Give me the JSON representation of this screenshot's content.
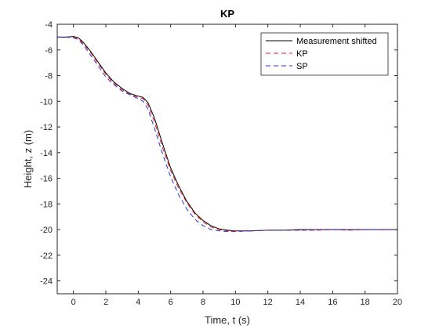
{
  "chart_data": {
    "type": "line",
    "title": "KP",
    "xlabel": "Time, t (s)",
    "ylabel": "Height, z (m)",
    "xlim": [
      -1,
      20
    ],
    "ylim": [
      -25,
      -4
    ],
    "xticks": [
      0,
      2,
      4,
      6,
      8,
      10,
      12,
      14,
      16,
      18,
      20
    ],
    "yticks": [
      -24,
      -22,
      -20,
      -18,
      -16,
      -14,
      -12,
      -10,
      -8,
      -6,
      -4
    ],
    "grid": false,
    "legend_position": "top-right",
    "series": [
      {
        "name": "Measurement shifted",
        "color": "#000000",
        "style": "solid",
        "x": [
          -1,
          -0.5,
          0,
          0.3,
          0.6,
          1,
          1.5,
          2,
          2.5,
          3,
          3.5,
          4,
          4.3,
          4.6,
          5,
          5.5,
          6,
          6.5,
          7,
          7.5,
          8,
          8.5,
          9,
          9.5,
          10,
          11,
          12,
          13,
          14,
          15,
          16,
          17,
          18,
          19,
          20
        ],
        "y": [
          -5.0,
          -5.0,
          -4.95,
          -5.05,
          -5.4,
          -6.0,
          -6.9,
          -7.8,
          -8.5,
          -9.0,
          -9.4,
          -9.6,
          -9.7,
          -10.1,
          -11.3,
          -13.3,
          -15.2,
          -16.6,
          -17.8,
          -18.7,
          -19.3,
          -19.7,
          -19.95,
          -20.05,
          -20.1,
          -20.1,
          -20.05,
          -20.05,
          -20.0,
          -20.0,
          -20.0,
          -20.0,
          -20.0,
          -20.0,
          -20.0
        ]
      },
      {
        "name": "KP",
        "color": "#e8181c",
        "style": "dashed",
        "x": [
          -1,
          -0.5,
          0,
          0.3,
          0.6,
          1,
          1.5,
          2,
          2.5,
          3,
          3.5,
          4,
          4.3,
          4.6,
          5,
          5.5,
          6,
          6.5,
          7,
          7.5,
          8,
          8.5,
          9,
          9.5,
          10,
          11,
          12,
          13,
          14,
          15,
          16,
          17,
          18,
          19,
          20
        ],
        "y": [
          -5.0,
          -5.0,
          -5.0,
          -5.1,
          -5.5,
          -6.1,
          -7.0,
          -7.9,
          -8.6,
          -9.1,
          -9.45,
          -9.7,
          -9.8,
          -10.3,
          -11.6,
          -13.6,
          -15.4,
          -16.8,
          -17.9,
          -18.8,
          -19.4,
          -19.8,
          -20.0,
          -20.1,
          -20.1,
          -20.1,
          -20.05,
          -20.05,
          -20.05,
          -20.0,
          -20.0,
          -20.0,
          -20.0,
          -20.0,
          -20.0
        ]
      },
      {
        "name": "SP",
        "color": "#2233dd",
        "style": "dashed",
        "x": [
          -1,
          -0.5,
          0,
          0.3,
          0.6,
          1,
          1.5,
          2,
          2.5,
          3,
          3.5,
          4,
          4.3,
          4.6,
          5,
          5.5,
          6,
          6.5,
          7,
          7.5,
          8,
          8.5,
          9,
          9.5,
          10,
          11,
          12,
          13,
          14,
          15,
          16,
          17,
          18,
          19,
          20
        ],
        "y": [
          -5.0,
          -5.0,
          -5.05,
          -5.2,
          -5.6,
          -6.3,
          -7.2,
          -8.1,
          -8.7,
          -9.2,
          -9.5,
          -9.8,
          -10.0,
          -10.6,
          -12.1,
          -14.1,
          -15.9,
          -17.3,
          -18.4,
          -19.2,
          -19.7,
          -20.0,
          -20.1,
          -20.15,
          -20.15,
          -20.1,
          -20.05,
          -20.05,
          -20.05,
          -20.05,
          -20.0,
          -20.05,
          -20.0,
          -20.0,
          -20.0
        ]
      }
    ]
  }
}
